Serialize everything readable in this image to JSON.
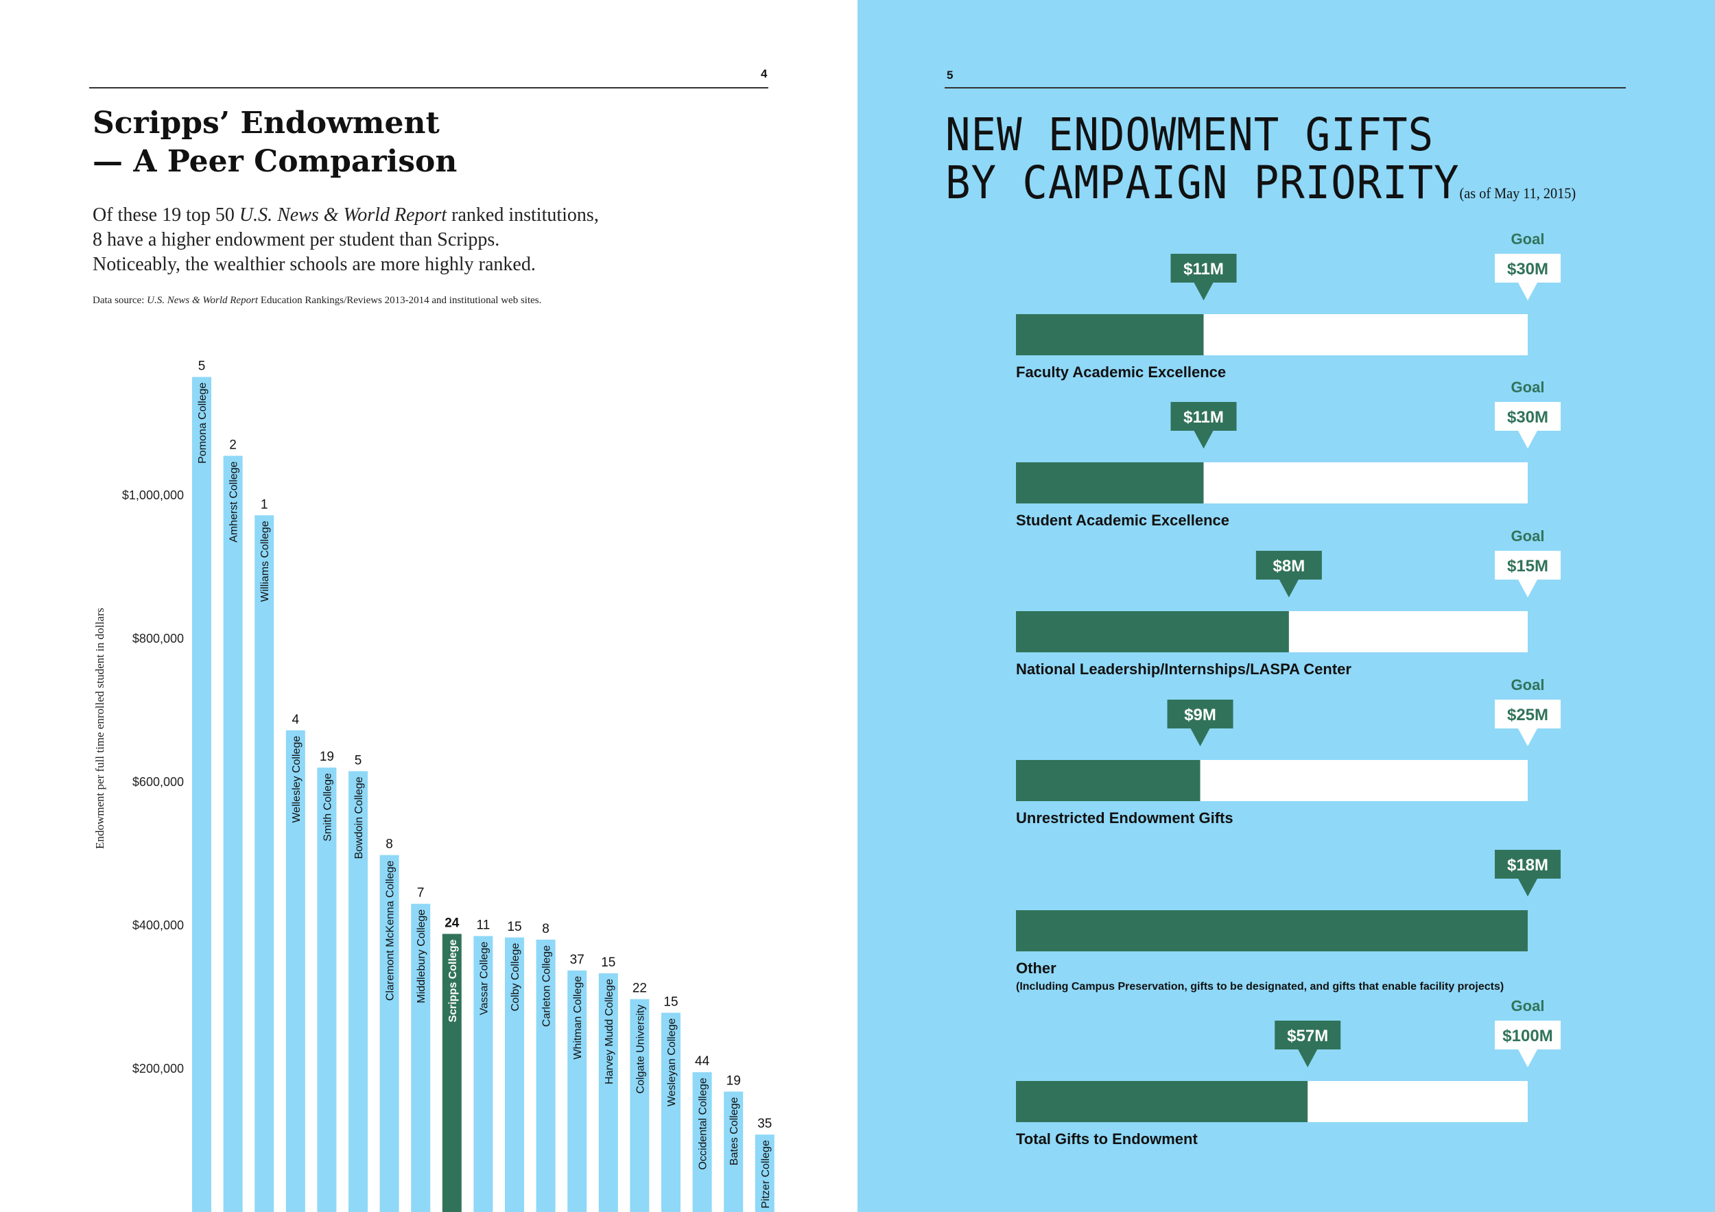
{
  "left_page": {
    "page_number": "4",
    "title_line1": "Scripps’ Endowment",
    "title_line2": "— A Peer Comparison",
    "desc_line1_pre": "Of these 19 top 50 ",
    "desc_line1_italic": "U.S. News & World Report",
    "desc_line1_post": " ranked institutions,",
    "desc_line2": "8 have a higher endowment per student than Scripps.",
    "desc_line3": "Noticeably, the wealthier schools are more highly ranked.",
    "source_pre": "Data source: ",
    "source_italic": "U.S. News & World Report",
    "source_post": " Education Rankings/Reviews 2013-2014 and institutional web sites."
  },
  "right_page": {
    "page_number": "5",
    "title_line1": "NEW ENDOWMENT GIFTS",
    "title_line2": "BY CAMPAIGN PRIORITY",
    "as_of": "(as of May 11, 2015)"
  },
  "colors": {
    "light_blue": "#8fd8f7",
    "dark_green": "#31735a",
    "white": "#ffffff",
    "text": "#111111"
  },
  "chart_data": [
    {
      "type": "bar",
      "ylabel": "Endowment per full time enrolled student in dollars",
      "ylim": [
        0,
        1200000
      ],
      "yticks": [
        200000,
        400000,
        600000,
        800000,
        1000000
      ],
      "ytick_labels": [
        "$200,000",
        "$400,000",
        "$600,000",
        "$800,000",
        "$1,000,000"
      ],
      "categories": [
        "Pomona College",
        "Amherst College",
        "Williams College",
        "Wellesley College",
        "Smith College",
        "Bowdoin College",
        "Claremont McKenna College",
        "Middlebury College",
        "Scripps College",
        "Vassar College",
        "Colby College",
        "Carleton College",
        "Whitman College",
        "Harvey Mudd College",
        "Colgate University",
        "Wesleyan College",
        "Occidental College",
        "Bates College",
        "Pitzer College"
      ],
      "values": [
        1165000,
        1055000,
        972000,
        672000,
        620000,
        615000,
        498000,
        430000,
        388000,
        385000,
        383000,
        380000,
        337000,
        333000,
        297000,
        278000,
        195000,
        168000,
        108000
      ],
      "ranks": [
        "5",
        "2",
        "1",
        "4",
        "19",
        "5",
        "8",
        "7",
        "24",
        "11",
        "15",
        "8",
        "37",
        "15",
        "22",
        "15",
        "44",
        "19",
        "35"
      ],
      "highlight": "Scripps College"
    },
    {
      "type": "bar",
      "orientation": "horizontal",
      "goal_label": "Goal",
      "categories": [
        "Faculty Academic Excellence",
        "Student Academic Excellence",
        "National Leadership/Internships/LASPA Center",
        "Unrestricted Endowment Gifts",
        "Other",
        "Total Gifts to Endowment"
      ],
      "notes": [
        "",
        "",
        "",
        "",
        "(Including Campus Preservation, gifts to be designated, and gifts that enable facility projects)",
        ""
      ],
      "series": [
        {
          "name": "",
          "values": [
            11,
            11,
            8,
            9,
            18,
            57
          ],
          "labels": [
            "$11M",
            "$11M",
            "$8M",
            "$9M",
            "$18M",
            "$57M"
          ]
        },
        {
          "name": "Goal",
          "values": [
            30,
            30,
            15,
            25,
            null,
            100
          ],
          "labels": [
            "$30M",
            "$30M",
            "$15M",
            "$25M",
            "",
            "$100M"
          ]
        }
      ]
    }
  ]
}
